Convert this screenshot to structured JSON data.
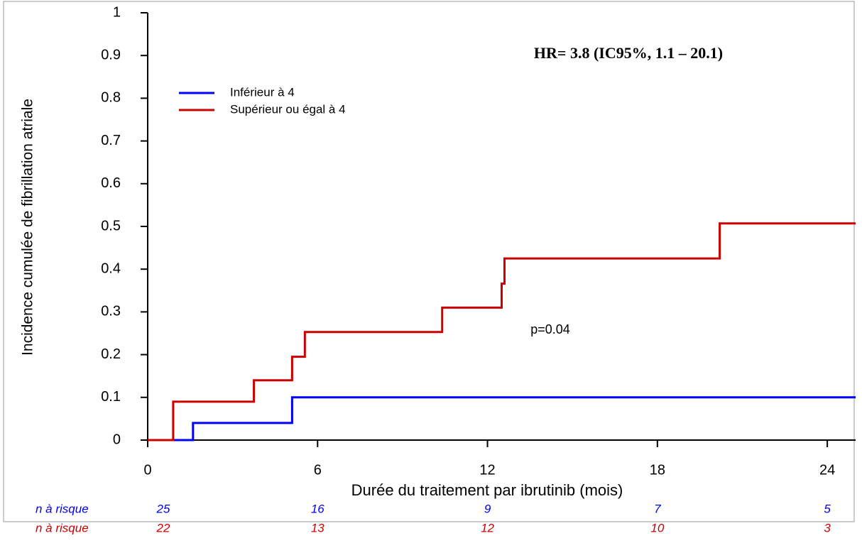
{
  "chart_data": {
    "type": "step",
    "y_label": "Incidence cumulée de fibrillation atriale",
    "x_label": "Durée du traitement par ibrutinib (mois)",
    "annotations": [
      "HR= 3.8 (IC95%, 1.1 – 20.1)",
      "p=0.04"
    ],
    "xlim": [
      0,
      25
    ],
    "ylim": [
      0,
      1
    ],
    "xticks": [
      0,
      6,
      12,
      18,
      24
    ],
    "yticks": [
      0,
      0.1,
      0.2,
      0.3,
      0.4,
      0.5,
      0.6,
      0.7,
      0.8,
      0.9,
      1
    ],
    "legend": "upper-left",
    "series": [
      {
        "name": "Inférieur à 4",
        "color": "#0000ff",
        "x": [
          0,
          1.6,
          5.1,
          25
        ],
        "values": [
          0,
          0.04,
          0.1,
          0.1
        ]
      },
      {
        "name": "Supérieur ou égal à 4",
        "color": "#cc0000",
        "x": [
          0,
          0.9,
          3.75,
          5.1,
          5.55,
          10.4,
          12.5,
          12.6,
          20.2,
          25
        ],
        "values": [
          0,
          0.09,
          0.14,
          0.195,
          0.253,
          0.31,
          0.366,
          0.425,
          0.507,
          0.507
        ]
      }
    ],
    "risk_table": [
      {
        "label": "n à risque",
        "color": "#0000ff",
        "values": [
          25,
          16,
          9,
          7,
          5
        ]
      },
      {
        "label": "n à risque",
        "color": "#cc0000",
        "values": [
          22,
          13,
          12,
          10,
          3
        ]
      }
    ]
  }
}
